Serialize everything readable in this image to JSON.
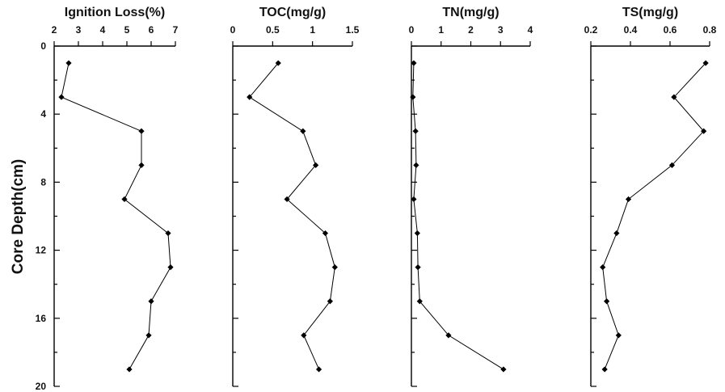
{
  "chart_data": {
    "type": "line",
    "ylabel": "Core Depth(cm)",
    "depth_axis": {
      "ylim": [
        0,
        20
      ],
      "major_ticks": [
        0,
        4,
        8,
        12,
        16,
        20
      ],
      "minor_ticks": [
        2,
        6,
        10,
        14,
        18
      ],
      "inverted": true
    },
    "panels": [
      {
        "title": "Ignition Loss(%)",
        "xlim": [
          2,
          7
        ],
        "xticks": [
          2,
          3,
          4,
          5,
          6,
          7
        ],
        "xtick_labels": [
          "2",
          "3",
          "4",
          "5",
          "6",
          "7"
        ],
        "depth": [
          1,
          3,
          5,
          7,
          9,
          11,
          13,
          15,
          17,
          19
        ],
        "values": [
          2.6,
          2.3,
          5.6,
          5.6,
          4.9,
          6.7,
          6.8,
          6.0,
          5.9,
          5.1
        ]
      },
      {
        "title": "TOC(mg/g)",
        "xlim": [
          0,
          1.5
        ],
        "xticks": [
          0,
          0.5,
          1,
          1.5
        ],
        "xtick_labels": [
          "0",
          "0.5",
          "1",
          "1.5"
        ],
        "depth": [
          1,
          3,
          5,
          7,
          9,
          11,
          13,
          15,
          17,
          19
        ],
        "values": [
          0.57,
          0.21,
          0.88,
          1.04,
          0.68,
          1.16,
          1.28,
          1.22,
          0.89,
          1.08
        ]
      },
      {
        "title": "TN(mg/g)",
        "xlim": [
          0,
          4
        ],
        "xticks": [
          0,
          1,
          2,
          3,
          4
        ],
        "xtick_labels": [
          "0",
          "1",
          "2",
          "3",
          "4"
        ],
        "depth": [
          1,
          3,
          5,
          7,
          9,
          11,
          13,
          15,
          17,
          19
        ],
        "values": [
          0.08,
          0.05,
          0.14,
          0.16,
          0.08,
          0.2,
          0.22,
          0.28,
          1.25,
          3.1
        ]
      },
      {
        "title": "TS(mg/g)",
        "xlim": [
          0.2,
          0.8
        ],
        "xticks": [
          0.2,
          0.4,
          0.6,
          0.8
        ],
        "xtick_labels": [
          "0.2",
          "0.4",
          "0.6",
          "0.8"
        ],
        "depth": [
          1,
          3,
          5,
          7,
          9,
          11,
          13,
          15,
          17,
          19
        ],
        "values": [
          0.78,
          0.62,
          0.77,
          0.61,
          0.39,
          0.33,
          0.26,
          0.28,
          0.34,
          0.27
        ]
      }
    ]
  }
}
